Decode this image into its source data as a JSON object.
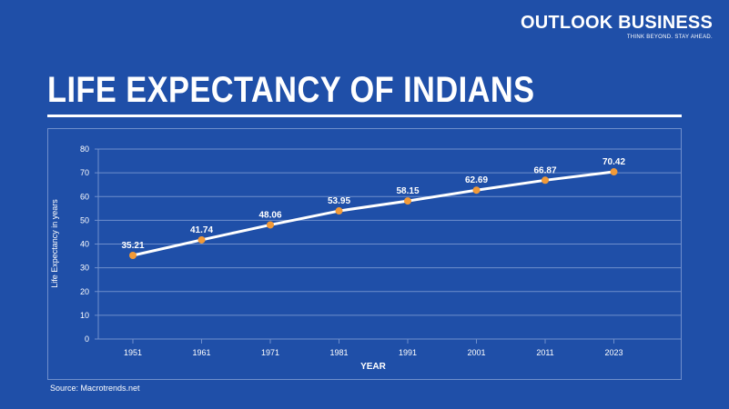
{
  "brand": {
    "name": "OUTLOOK BUSINESS",
    "tagline": "THINK BEYOND. STAY AHEAD."
  },
  "title": "LIFE EXPECTANCY OF INDIANS",
  "source": "Source: Macrotrends.net",
  "colors": {
    "background": "#1f4fa8",
    "line": "#ffffff",
    "marker": "#f29a38",
    "grid": "#6f8fcc"
  },
  "chart_data": {
    "type": "line",
    "categories": [
      "1951",
      "1961",
      "1971",
      "1981",
      "1991",
      "2001",
      "2011",
      "2023"
    ],
    "values": [
      35.21,
      41.74,
      48.06,
      53.95,
      58.15,
      62.69,
      66.87,
      70.42
    ],
    "labels": [
      "35.21",
      "41.74",
      "48.06",
      "53.95",
      "58.15",
      "62.69",
      "66.87",
      "70.42"
    ],
    "xlabel": "YEAR",
    "ylabel": "Life Expectancy in years",
    "ylim": [
      0,
      80
    ],
    "yticks": [
      "0",
      "10",
      "20",
      "30",
      "40",
      "50",
      "60",
      "70",
      "80"
    ],
    "grid": true,
    "legend": "none"
  }
}
